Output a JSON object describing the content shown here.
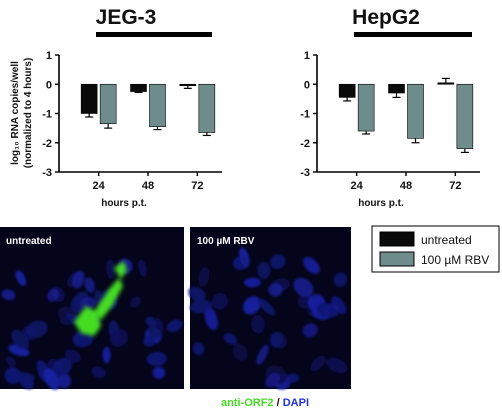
{
  "chart_data": [
    {
      "type": "bar",
      "title": "JEG-3",
      "categories": [
        "24",
        "48",
        "72"
      ],
      "xlabel": "hours p.t.",
      "ylabel": "log₁₀ RNA copies/well",
      "ylabel2": "(normalized to 4 hours)",
      "ylim": [
        -3,
        1
      ],
      "yticks": [
        "1",
        "0",
        "-1",
        "-2",
        "-3"
      ],
      "series": [
        {
          "name": "untreated",
          "values": [
            -1.0,
            -0.25,
            -0.05
          ],
          "errors": [
            0.12,
            0.03,
            0.09
          ],
          "color": "#0a0a0a"
        },
        {
          "name": "100 µM RBV",
          "values": [
            -1.35,
            -1.45,
            -1.65
          ],
          "errors": [
            0.15,
            0.1,
            0.1
          ],
          "color": "#6f8c8c"
        }
      ]
    },
    {
      "type": "bar",
      "title": "HepG2",
      "categories": [
        "24",
        "48",
        "72"
      ],
      "xlabel": "hours p.t.",
      "ylim": [
        -3,
        1
      ],
      "yticks": [
        "1",
        "0",
        "-1",
        "-2",
        "-3"
      ],
      "series": [
        {
          "name": "untreated",
          "values": [
            -0.45,
            -0.3,
            0.05
          ],
          "errors": [
            0.12,
            0.15,
            0.15
          ],
          "color": "#0a0a0a"
        },
        {
          "name": "100 µM RBV",
          "values": [
            -1.6,
            -1.85,
            -2.2
          ],
          "errors": [
            0.1,
            0.15,
            0.13
          ],
          "color": "#6f8c8c"
        }
      ]
    }
  ],
  "legend": {
    "items": [
      {
        "label": "untreated",
        "color": "#0a0a0a"
      },
      {
        "label": "100 µM RBV",
        "color": "#6f8c8c"
      }
    ]
  },
  "micrographs": {
    "left_label": "untreated",
    "right_label": "100 µM RBV",
    "caption_marker": "anti-ORF2",
    "caption_separator": " / ",
    "caption_dapi": "DAPI",
    "marker_color": "#44dd22",
    "dapi_color": "#2233dd"
  }
}
